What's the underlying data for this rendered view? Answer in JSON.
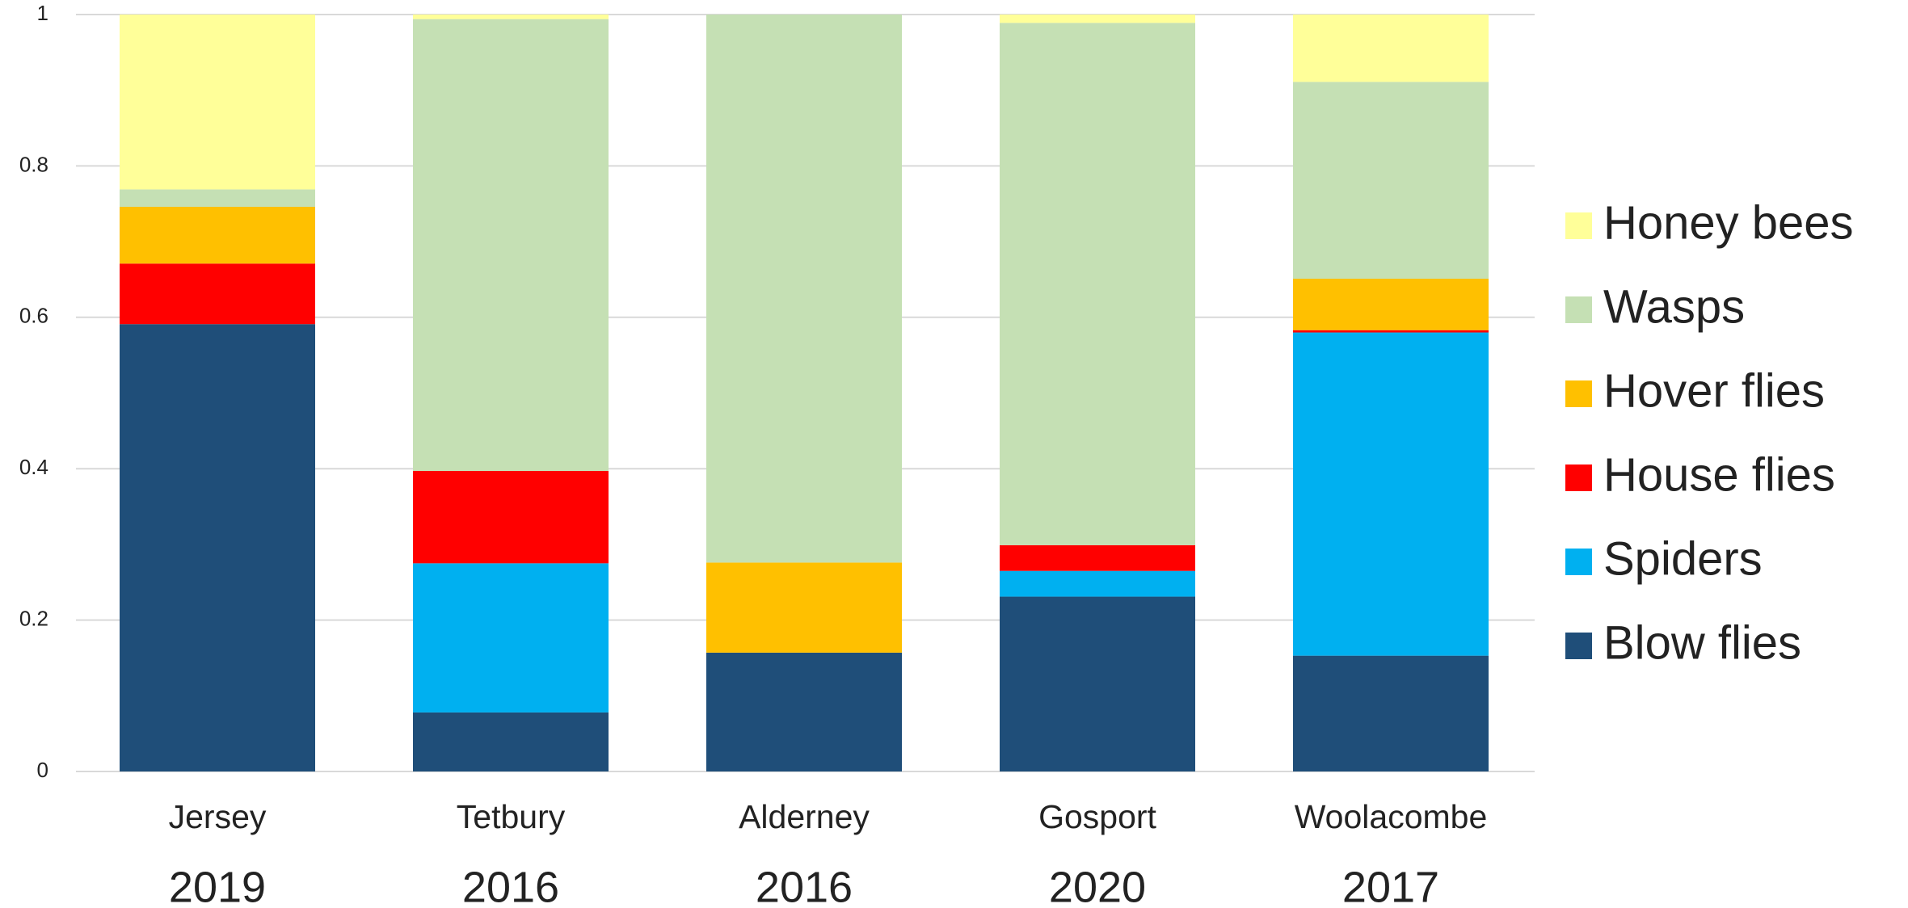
{
  "chart_data": {
    "type": "stacked_bar",
    "categories": [
      "Jersey",
      "Tetbury",
      "Alderney",
      "Gosport",
      "Woolacombe"
    ],
    "category_years": [
      "2019",
      "2016",
      "2016",
      "2020",
      "2017"
    ],
    "series": [
      {
        "name": "Blow flies",
        "color": "#1f4e79",
        "values": [
          0.591,
          0.078,
          0.157,
          0.231,
          0.153
        ]
      },
      {
        "name": "Spiders",
        "color": "#00b0f0",
        "values": [
          0,
          0.197,
          0,
          0.034,
          0.427
        ]
      },
      {
        "name": "House flies",
        "color": "#ff0000",
        "values": [
          0.08,
          0.122,
          0,
          0.034,
          0.003
        ]
      },
      {
        "name": "Hover flies",
        "color": "#ffc000",
        "values": [
          0.075,
          0,
          0.119,
          0,
          0.068
        ]
      },
      {
        "name": "Wasps",
        "color": "#c5e0b4",
        "values": [
          0.023,
          0.597,
          0.724,
          0.69,
          0.26
        ]
      },
      {
        "name": "Honey bees",
        "color": "#ffff99",
        "values": [
          0.231,
          0.006,
          0,
          0.011,
          0.089
        ]
      }
    ],
    "ylim": [
      0,
      1
    ],
    "yticks": [
      0,
      0.2,
      0.4,
      0.6,
      0.8,
      1
    ],
    "grid": true,
    "legend": "right"
  }
}
